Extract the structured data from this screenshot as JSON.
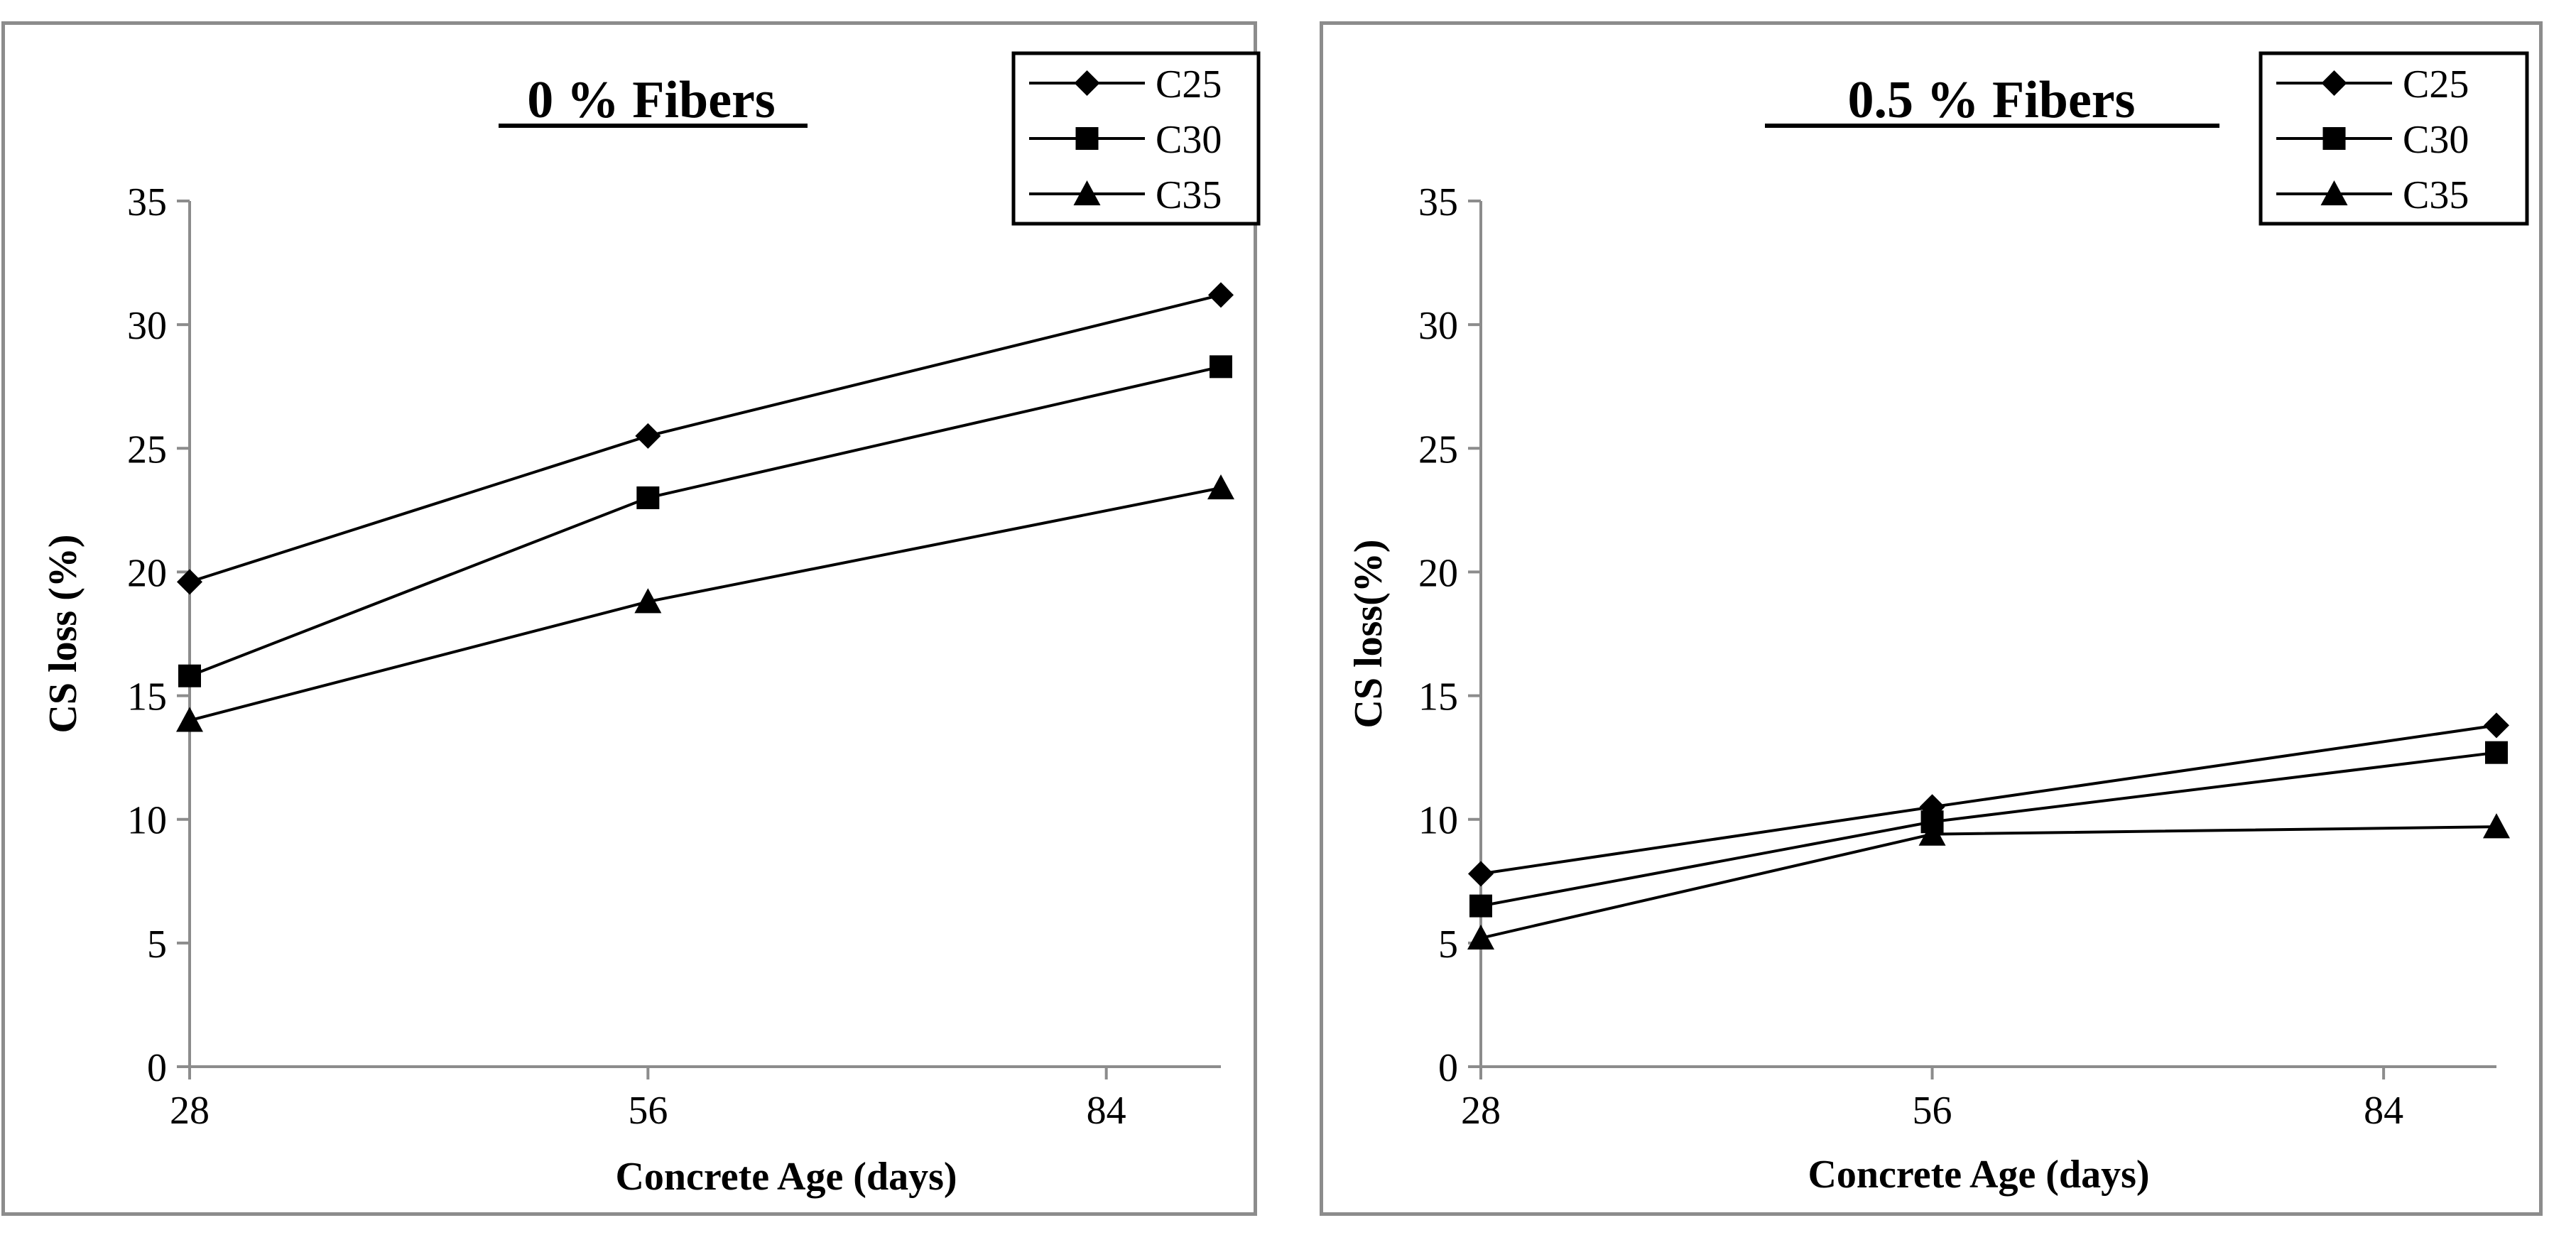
{
  "chart_data": [
    {
      "type": "line",
      "title": "0 % Fibers",
      "xlabel": "Concrete Age (days)",
      "ylabel": "CS loss (%)",
      "x": [
        28,
        56,
        91
      ],
      "x_ticks": [
        "28",
        "56",
        "84"
      ],
      "x_tick_values": [
        28,
        56,
        84
      ],
      "xlim": [
        28,
        91
      ],
      "ylim": [
        0,
        35
      ],
      "y_ticks": [
        "0",
        "5",
        "10",
        "15",
        "20",
        "25",
        "30",
        "35"
      ],
      "legend_position": "top-right",
      "series": [
        {
          "name": "C25",
          "marker": "diamond",
          "values": [
            19.6,
            25.5,
            31.2
          ]
        },
        {
          "name": "C30",
          "marker": "square",
          "values": [
            15.8,
            23.0,
            28.3
          ]
        },
        {
          "name": "C35",
          "marker": "triangle",
          "values": [
            14.0,
            18.8,
            23.4
          ]
        }
      ]
    },
    {
      "type": "line",
      "title": "0.5 % Fibers",
      "xlabel": "Concrete Age (days)",
      "ylabel": "CS loss(%)",
      "x": [
        28,
        56,
        91
      ],
      "x_ticks": [
        "28",
        "56",
        "84"
      ],
      "x_tick_values": [
        28,
        56,
        84
      ],
      "xlim": [
        28,
        91
      ],
      "ylim": [
        0,
        35
      ],
      "y_ticks": [
        "0",
        "5",
        "10",
        "15",
        "20",
        "25",
        "30",
        "35"
      ],
      "legend_position": "top-right",
      "series": [
        {
          "name": "C25",
          "marker": "diamond",
          "values": [
            7.8,
            10.5,
            13.8
          ]
        },
        {
          "name": "C30",
          "marker": "square",
          "values": [
            6.5,
            9.9,
            12.7
          ]
        },
        {
          "name": "C35",
          "marker": "triangle",
          "values": [
            5.2,
            9.4,
            9.7
          ]
        }
      ]
    }
  ]
}
